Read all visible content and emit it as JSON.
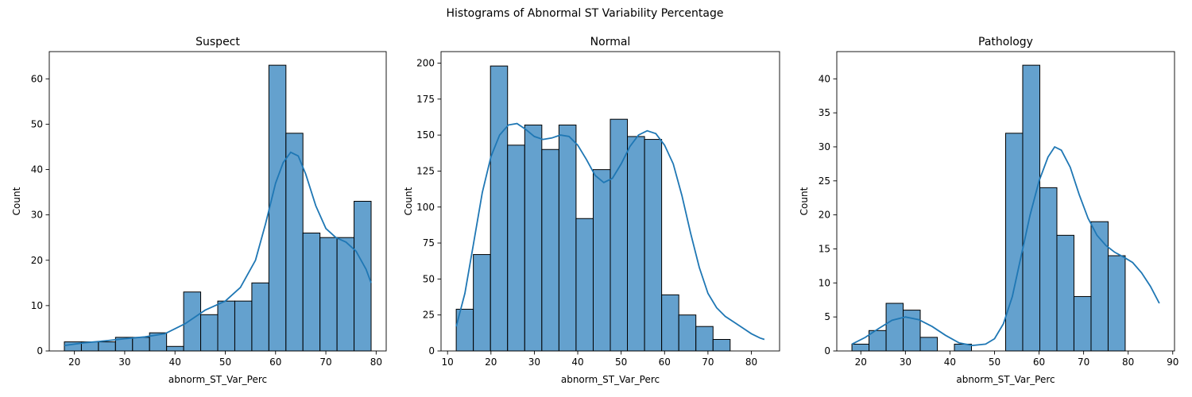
{
  "figure": {
    "suptitle": "Histograms of Abnormal ST Variability Percentage"
  },
  "chart_data": [
    {
      "type": "bar",
      "title": "Suspect",
      "xlabel": "abnorm_ST_Var_Perc",
      "ylabel": "Count",
      "xlim": [
        15,
        82
      ],
      "ylim": [
        0,
        66
      ],
      "xticks": [
        20,
        30,
        40,
        50,
        60,
        70,
        80
      ],
      "yticks": [
        0,
        10,
        20,
        30,
        40,
        50,
        60
      ],
      "bin_edges": [
        18,
        21.39,
        24.78,
        28.17,
        31.56,
        34.94,
        38.33,
        41.72,
        45.11,
        48.5,
        51.89,
        55.28,
        58.67,
        62.06,
        65.44,
        68.83,
        72.22,
        75.61,
        79
      ],
      "values": [
        2,
        2,
        2,
        3,
        3,
        4,
        1,
        13,
        8,
        11,
        11,
        15,
        63,
        48,
        26,
        25,
        25,
        33
      ],
      "kde": {
        "x": [
          18,
          22,
          26,
          30,
          34,
          38,
          42,
          46,
          50,
          53,
          56,
          58,
          60,
          61.5,
          63,
          64.5,
          66,
          68,
          70,
          72,
          74,
          76,
          78,
          79
        ],
        "y": [
          1.2,
          1.8,
          2.2,
          2.7,
          3.1,
          3.8,
          6.0,
          9.0,
          11.0,
          14.0,
          20.0,
          28.0,
          37.0,
          41.5,
          43.8,
          43.0,
          39.0,
          32.0,
          27.0,
          25.0,
          24.0,
          22.0,
          18.0,
          15.0
        ]
      }
    },
    {
      "type": "bar",
      "title": "Normal",
      "xlabel": "abnorm_ST_Var_Perc",
      "ylabel": "Count",
      "xlim": [
        8.5,
        86.5
      ],
      "ylim": [
        0,
        208
      ],
      "xticks": [
        10,
        20,
        30,
        40,
        50,
        60,
        70,
        80
      ],
      "yticks": [
        0,
        25,
        50,
        75,
        100,
        125,
        150,
        175,
        200
      ],
      "bin_edges": [
        12,
        15.94,
        19.89,
        23.83,
        27.78,
        31.72,
        35.67,
        39.61,
        43.56,
        47.5,
        51.44,
        55.39,
        59.33,
        63.28,
        67.22,
        71.17,
        75.11,
        79.06,
        83
      ],
      "values": [
        29,
        67,
        198,
        143,
        157,
        140,
        157,
        92,
        126,
        161,
        149,
        147,
        39,
        25,
        17,
        8,
        0,
        0
      ],
      "kde": {
        "x": [
          12,
          14,
          16,
          18,
          20,
          22,
          24,
          26,
          28,
          30,
          32,
          34,
          36,
          38,
          40,
          42,
          44,
          46,
          48,
          50,
          52,
          54,
          56,
          58,
          60,
          62,
          64,
          66,
          68,
          70,
          72,
          74,
          76,
          78,
          80,
          82,
          83
        ],
        "y": [
          17,
          40,
          75,
          110,
          135,
          150,
          157,
          158,
          154,
          149,
          147,
          148,
          150,
          149,
          143,
          133,
          122,
          117,
          120,
          130,
          142,
          150,
          153,
          151,
          143,
          130,
          108,
          82,
          58,
          40,
          30,
          24,
          20,
          16,
          12,
          9,
          8
        ]
      }
    },
    {
      "type": "bar",
      "title": "Pathology",
      "xlabel": "abnorm_ST_Var_Perc",
      "ylabel": "Count",
      "xlim": [
        14.6,
        90.4
      ],
      "ylim": [
        0,
        44
      ],
      "xticks": [
        20,
        30,
        40,
        50,
        60,
        70,
        80,
        90
      ],
      "yticks": [
        0,
        5,
        10,
        15,
        20,
        25,
        30,
        35,
        40
      ],
      "bin_edges": [
        18,
        21.83,
        25.67,
        29.5,
        33.33,
        37.17,
        41,
        44.83,
        48.67,
        52.5,
        56.33,
        60.17,
        64,
        67.83,
        71.67,
        75.5,
        79.33,
        83.17,
        87
      ],
      "values": [
        1,
        3,
        7,
        6,
        2,
        0,
        1,
        0,
        0,
        32,
        42,
        24,
        17,
        8,
        19,
        14,
        0,
        0
      ],
      "kde": {
        "x": [
          18,
          21,
          24,
          27,
          30,
          33,
          36,
          39,
          42,
          45,
          48,
          50,
          52,
          54,
          56,
          58,
          60,
          62,
          63.5,
          65,
          67,
          69,
          71,
          73,
          75,
          77,
          79,
          81,
          83,
          85,
          87
        ],
        "y": [
          1.0,
          2.0,
          3.3,
          4.5,
          5.0,
          4.6,
          3.6,
          2.3,
          1.2,
          0.8,
          1.0,
          1.8,
          4.0,
          8.0,
          14.0,
          20.0,
          25.0,
          28.5,
          30.0,
          29.5,
          27.0,
          23.0,
          19.5,
          17.0,
          15.5,
          14.5,
          13.8,
          13.0,
          11.5,
          9.5,
          7.0
        ]
      }
    }
  ]
}
